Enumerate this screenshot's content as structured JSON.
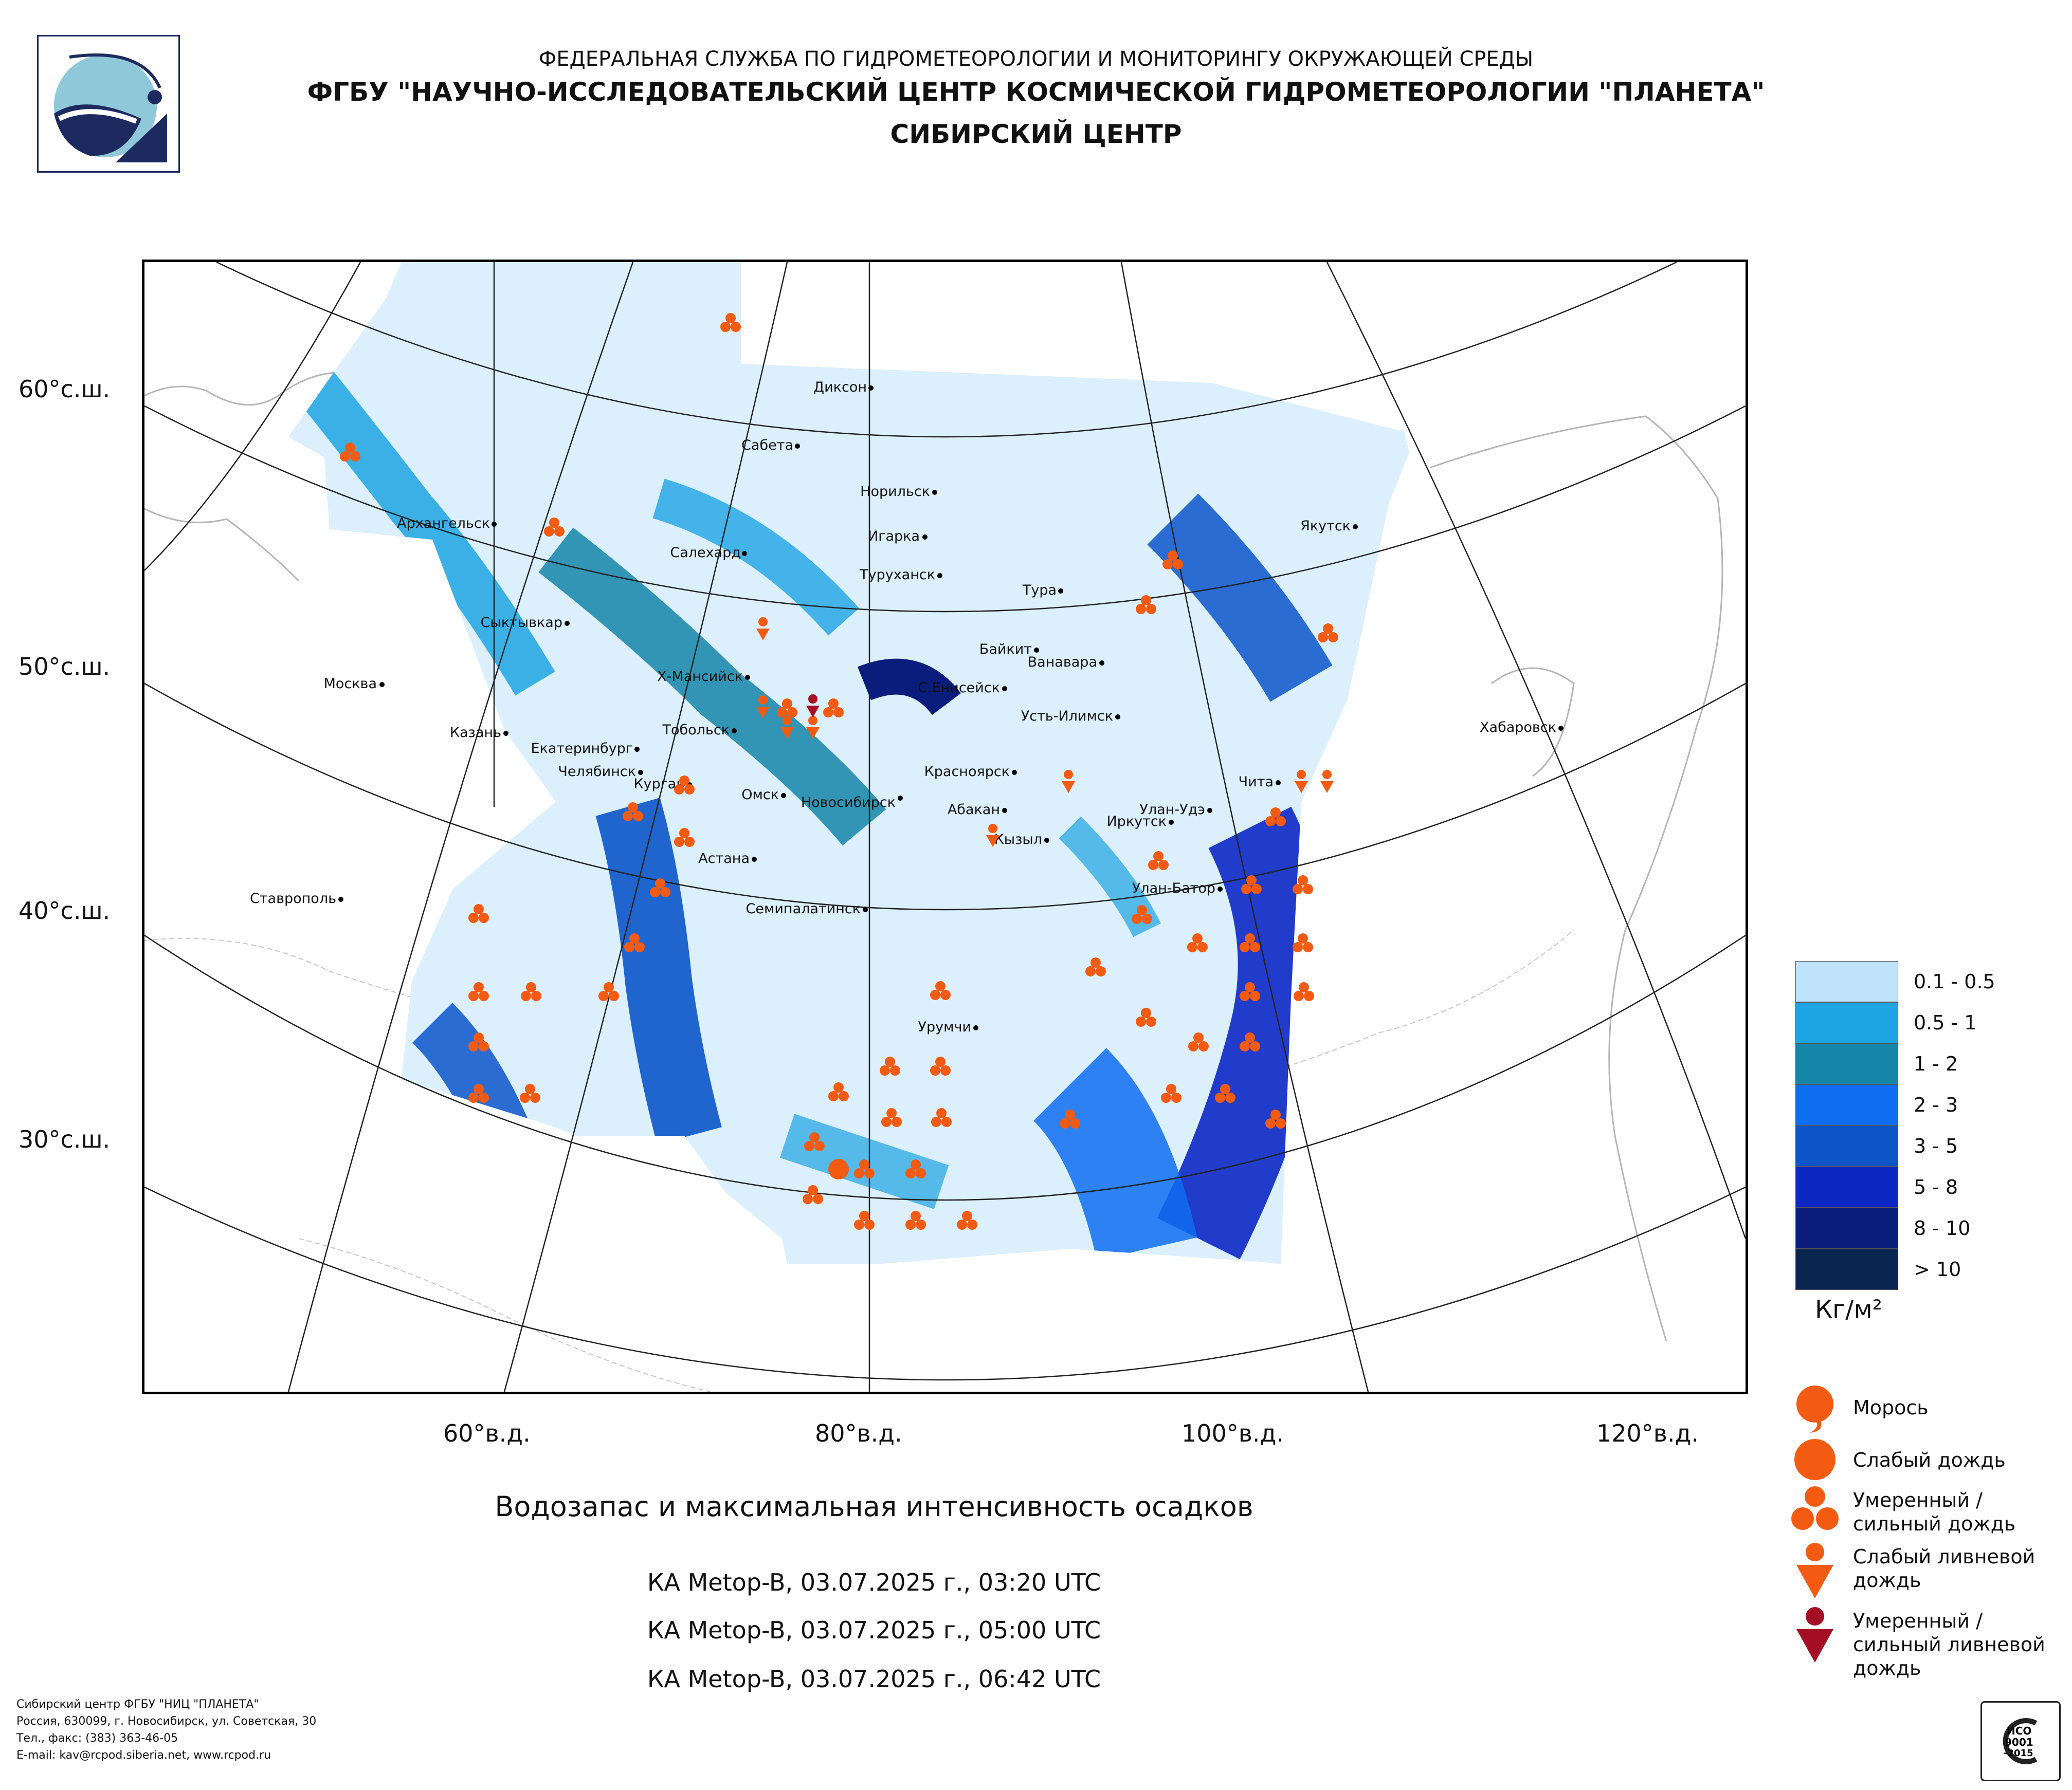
{
  "header": {
    "line1": "ФЕДЕРАЛЬНАЯ СЛУЖБА ПО ГИДРОМЕТЕОРОЛОГИИ И МОНИТОРИНГУ ОКРУЖАЮЩЕЙ СРЕДЫ",
    "line2": "ФГБУ \"НАУЧНО-ИССЛЕДОВАТЕЛЬСКИЙ ЦЕНТР КОСМИЧЕСКОЙ ГИДРОМЕТЕОРОЛОГИИ \"ПЛАНЕТА\"",
    "line3": "СИБИРСКИЙ ЦЕНТР"
  },
  "map": {
    "lat_labels": [
      "60°с.ш.",
      "50°с.ш.",
      "40°с.ш.",
      "30°с.ш."
    ],
    "lon_labels": [
      "60°в.д.",
      "80°в.д.",
      "100°в.д.",
      "120°в.д."
    ],
    "cities": [
      {
        "name": "Диксон"
      },
      {
        "name": "Сабета"
      },
      {
        "name": "Норильск"
      },
      {
        "name": "Архангельск"
      },
      {
        "name": "Игарка"
      },
      {
        "name": "Салехард"
      },
      {
        "name": "Туруханск"
      },
      {
        "name": "Тура"
      },
      {
        "name": "Якутск"
      },
      {
        "name": "Сыктывкар"
      },
      {
        "name": "Байкит"
      },
      {
        "name": "Ванавара"
      },
      {
        "name": "Москва"
      },
      {
        "name": "Х-Мансийск"
      },
      {
        "name": "С.Енисейск"
      },
      {
        "name": "Казань"
      },
      {
        "name": "Тобольск"
      },
      {
        "name": "Усть-Илимск"
      },
      {
        "name": "Хабаровск"
      },
      {
        "name": "Екатеринбург"
      },
      {
        "name": "Челябинск"
      },
      {
        "name": "Красноярск"
      },
      {
        "name": "Чита"
      },
      {
        "name": "Курган"
      },
      {
        "name": "Омск"
      },
      {
        "name": "Новосибирск"
      },
      {
        "name": "Абакан"
      },
      {
        "name": "Улан-Удэ"
      },
      {
        "name": "Иркутск"
      },
      {
        "name": "Кызыл"
      },
      {
        "name": "Астана"
      },
      {
        "name": "Улан-Батор"
      },
      {
        "name": "Ставрополь"
      },
      {
        "name": "Семипалатинск"
      },
      {
        "name": "Урумчи"
      }
    ]
  },
  "legend": {
    "scale": [
      {
        "label": "0.1 - 0.5",
        "color": "#bfe3fb"
      },
      {
        "label": "0.5 - 1",
        "color": "#1da4e3"
      },
      {
        "label": "1 - 2",
        "color": "#1585a8"
      },
      {
        "label": "2 - 3",
        "color": "#0e6df0"
      },
      {
        "label": "3 - 5",
        "color": "#0b55c9"
      },
      {
        "label": "5 - 8",
        "color": "#0c27c4"
      },
      {
        "label": "8 - 10",
        "color": "#0a1c7c"
      },
      {
        "label": "> 10",
        "color": "#0a2450"
      }
    ],
    "unit": "Кг/м²",
    "symbols": [
      {
        "label": "Морось",
        "icon": "drizzle-icon",
        "color": "#f35a12"
      },
      {
        "label": "Слабый дождь",
        "icon": "light-rain-icon",
        "color": "#f35a12"
      },
      {
        "label": "Умеренный / сильный дождь",
        "icon": "moderate-rain-icon",
        "color": "#f35a12"
      },
      {
        "label": "Слабый ливневой дождь",
        "icon": "light-shower-icon",
        "color": "#f35a12"
      },
      {
        "label": "Умеренный / сильный ливневой дождь",
        "icon": "heavy-shower-icon",
        "color": "#a50f25"
      }
    ]
  },
  "caption": "Водозапас и максимальная интенсивность осадков",
  "passes": [
    "КА Metop-B, 03.07.2025 г., 03:20 UTC",
    "КА Metop-B, 03.07.2025 г., 05:00 UTC",
    "КА Metop-B, 03.07.2025 г., 06:42 UTC"
  ],
  "footer": [
    "Сибирский центр ФГБУ \"НИЦ \"ПЛАНЕТА\"",
    "Россия, 630099, г. Новосибирск, ул. Советская, 30",
    "Тел., факс: (383) 363-46-05",
    "E-mail: kav@rcpod.siberia.net, www.rcpod.ru"
  ],
  "cert": {
    "text1": "ИСО",
    "text2": "9001",
    "text3": "-2015"
  }
}
